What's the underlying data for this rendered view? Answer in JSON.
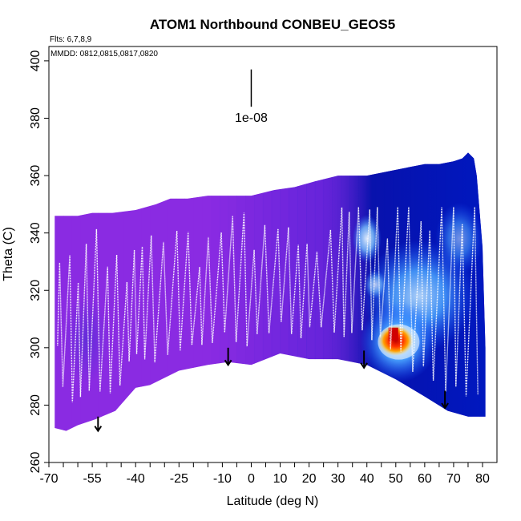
{
  "chart_data": {
    "type": "heatmap",
    "title": "ATOM1 Northbound CONBEU_GEOS5",
    "flights_label": "Flts: 6,7,8,9",
    "dates_label": "MMDD: 0812,0815,0817,0820",
    "xlabel": "Latitude (deg N)",
    "ylabel": "Theta (C)",
    "xlim": [
      -70,
      82
    ],
    "ylim": [
      260,
      405
    ],
    "x_ticks": [
      -70,
      -55,
      -40,
      -25,
      -10,
      0,
      10,
      20,
      30,
      40,
      50,
      60,
      70,
      80
    ],
    "x_ticks_minor_step": 5,
    "y_ticks": [
      260,
      280,
      300,
      320,
      340,
      360,
      380,
      400
    ],
    "scale_bar": {
      "x": 0,
      "y_top": 397,
      "y_bottom": 384,
      "label": "1e-08"
    },
    "curtain": {
      "top": [
        [
          -68,
          346
        ],
        [
          -60,
          346
        ],
        [
          -55,
          347
        ],
        [
          -48,
          347
        ],
        [
          -40,
          348
        ],
        [
          -33,
          350
        ],
        [
          -28,
          352
        ],
        [
          -22,
          352
        ],
        [
          -15,
          353
        ],
        [
          -8,
          353
        ],
        [
          0,
          353
        ],
        [
          8,
          355
        ],
        [
          15,
          356
        ],
        [
          22,
          358
        ],
        [
          30,
          360
        ],
        [
          35,
          360
        ],
        [
          40,
          360
        ],
        [
          45,
          361
        ],
        [
          50,
          362
        ],
        [
          55,
          363
        ],
        [
          60,
          364
        ],
        [
          65,
          364
        ],
        [
          70,
          365
        ],
        [
          73,
          366
        ],
        [
          75,
          368
        ],
        [
          77,
          366
        ],
        [
          78,
          360
        ],
        [
          80,
          335
        ],
        [
          81,
          300
        ],
        [
          81,
          277
        ]
      ],
      "bottom": [
        [
          81,
          276
        ],
        [
          75,
          276
        ],
        [
          68,
          278
        ],
        [
          60,
          283
        ],
        [
          50,
          289
        ],
        [
          40,
          294
        ],
        [
          30,
          296
        ],
        [
          20,
          296
        ],
        [
          10,
          298
        ],
        [
          0,
          294
        ],
        [
          -8,
          295
        ],
        [
          -15,
          294
        ],
        [
          -25,
          292
        ],
        [
          -35,
          287
        ],
        [
          -40,
          286
        ],
        [
          -47,
          278
        ],
        [
          -54,
          275
        ],
        [
          -60,
          273
        ],
        [
          -64,
          271
        ],
        [
          -68,
          272
        ],
        [
          -68,
          300
        ]
      ],
      "plume": {
        "center": [
          50,
          302
        ],
        "peak": "red"
      }
    },
    "flight_path_label": "aircraft track",
    "arrows": [
      {
        "lat": -53,
        "theta_top": 276,
        "theta_bottom": 271
      },
      {
        "lat": -8,
        "theta_top": 300,
        "theta_bottom": 294
      },
      {
        "lat": 39,
        "theta_top": 299,
        "theta_bottom": 293
      },
      {
        "lat": 67,
        "theta_top": 285,
        "theta_bottom": 279
      }
    ],
    "colors": {
      "background_purple": "#8a2be2",
      "deep_blue": "#0010a8",
      "mid_blue": "#1e6fff",
      "light_blue": "#7cc4ff",
      "pale": "#e8f2ff",
      "peak_red": "#d00000",
      "peak_orange": "#ff8c00",
      "track": "#ffffff"
    }
  }
}
